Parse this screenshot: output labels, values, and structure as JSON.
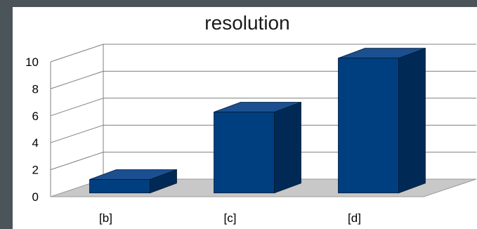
{
  "chart_data": {
    "type": "bar",
    "title": "resolution",
    "categories": [
      "[b]",
      "[c]",
      "[d]"
    ],
    "values": [
      1,
      6,
      10
    ],
    "ylim": [
      0,
      10
    ],
    "yticks": [
      0,
      2,
      4,
      6,
      8,
      10
    ],
    "xlabel": "",
    "ylabel": "",
    "grid": true,
    "legend": "none",
    "bar_color": "#003f7f",
    "bar_top_color": "#1b4f90",
    "bar_side_color": "#002a55",
    "floor_color": "#c8c8c8",
    "background_color": "#ffffff",
    "frame_color": "#4a5459"
  }
}
